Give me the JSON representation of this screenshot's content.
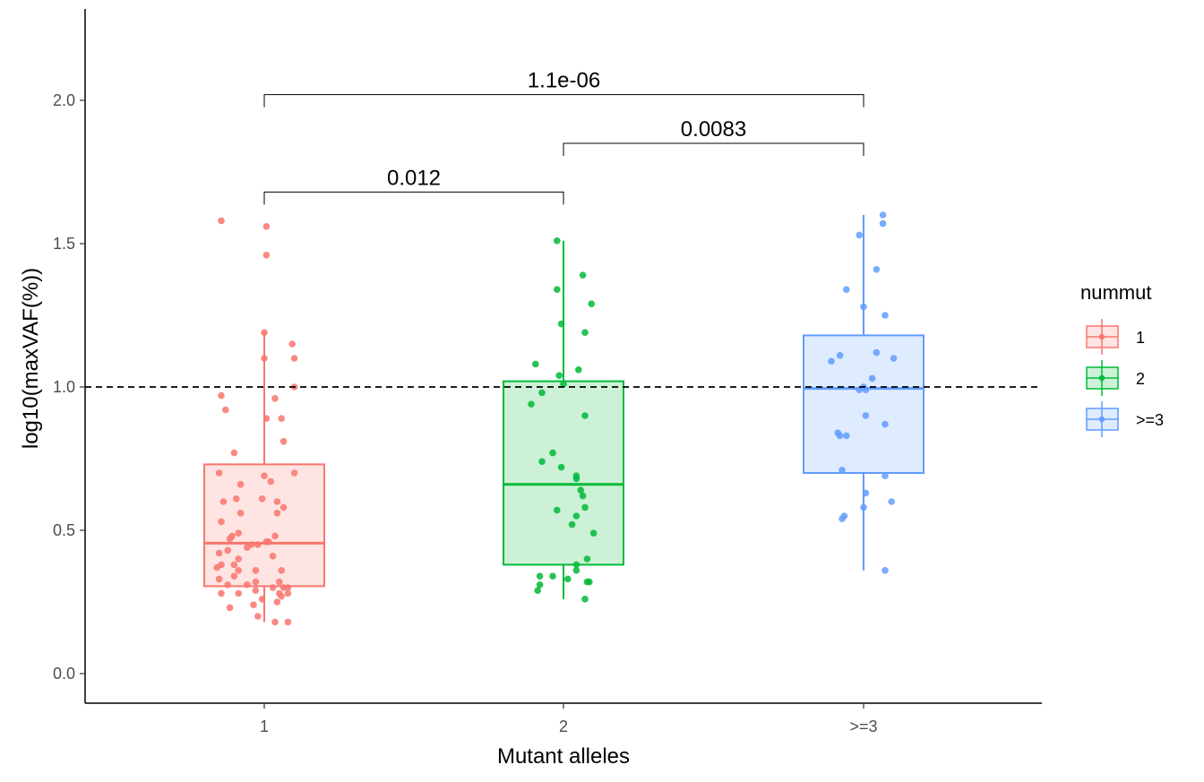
{
  "chart_data": {
    "type": "box",
    "xlabel": "Mutant alleles",
    "ylabel": "log10(maxVAF(%))",
    "categories": [
      "1",
      "2",
      ">=3"
    ],
    "ylim": [
      -0.1,
      2.3
    ],
    "yticks": [
      0.0,
      0.5,
      1.0,
      1.5,
      2.0
    ],
    "ytick_labels": [
      "0.0",
      "0.5",
      "1.0",
      "1.5",
      "2.0"
    ],
    "reference_line": {
      "y": 1.0,
      "style": "dashed",
      "color": "#000000"
    },
    "grid": false,
    "legend": {
      "title": "nummut",
      "position": "right",
      "entries": [
        "1",
        "2",
        ">=3"
      ]
    },
    "colors": {
      "1": "#F8766D",
      "2": "#00BA38",
      ">=3": "#619CFF"
    },
    "boxes": [
      {
        "category": "1",
        "lower_whisker": 0.18,
        "q1": 0.305,
        "median": 0.455,
        "q3": 0.73,
        "upper_whisker": 1.19
      },
      {
        "category": "2",
        "lower_whisker": 0.26,
        "q1": 0.38,
        "median": 0.66,
        "q3": 1.02,
        "upper_whisker": 1.51
      },
      {
        "category": ">=3",
        "lower_whisker": 0.36,
        "q1": 0.7,
        "median": 0.995,
        "q3": 1.18,
        "upper_whisker": 1.6
      }
    ],
    "points": {
      "1": [
        [
          -0.2,
          1.58
        ],
        [
          0.01,
          1.56
        ],
        [
          0.01,
          1.46
        ],
        [
          0.0,
          1.19
        ],
        [
          0.13,
          1.15
        ],
        [
          0.14,
          1.1
        ],
        [
          0.0,
          1.1
        ],
        [
          0.14,
          1.0
        ],
        [
          -0.2,
          0.97
        ],
        [
          0.05,
          0.96
        ],
        [
          -0.18,
          0.92
        ],
        [
          0.01,
          0.89
        ],
        [
          0.08,
          0.89
        ],
        [
          0.09,
          0.81
        ],
        [
          -0.14,
          0.77
        ],
        [
          -0.21,
          0.7
        ],
        [
          0.14,
          0.7
        ],
        [
          0.0,
          0.69
        ],
        [
          0.03,
          0.67
        ],
        [
          -0.11,
          0.66
        ],
        [
          -0.13,
          0.61
        ],
        [
          -0.01,
          0.61
        ],
        [
          -0.19,
          0.6
        ],
        [
          0.06,
          0.6
        ],
        [
          0.09,
          0.58
        ],
        [
          -0.11,
          0.56
        ],
        [
          0.06,
          0.56
        ],
        [
          -0.2,
          0.53
        ],
        [
          -0.12,
          0.49
        ],
        [
          -0.15,
          0.48
        ],
        [
          0.05,
          0.48
        ],
        [
          -0.16,
          0.47
        ],
        [
          0.01,
          0.46
        ],
        [
          0.02,
          0.46
        ],
        [
          -0.03,
          0.45
        ],
        [
          -0.06,
          0.45
        ],
        [
          -0.08,
          0.44
        ],
        [
          -0.17,
          0.43
        ],
        [
          -0.21,
          0.42
        ],
        [
          0.04,
          0.41
        ],
        [
          -0.12,
          0.4
        ],
        [
          -0.14,
          0.38
        ],
        [
          -0.2,
          0.38
        ],
        [
          -0.22,
          0.37
        ],
        [
          -0.12,
          0.36
        ],
        [
          -0.04,
          0.36
        ],
        [
          0.08,
          0.36
        ],
        [
          -0.14,
          0.34
        ],
        [
          -0.21,
          0.33
        ],
        [
          -0.04,
          0.32
        ],
        [
          0.07,
          0.32
        ],
        [
          -0.17,
          0.31
        ],
        [
          -0.08,
          0.31
        ],
        [
          0.04,
          0.3
        ],
        [
          0.09,
          0.3
        ],
        [
          0.11,
          0.3
        ],
        [
          -0.04,
          0.29
        ],
        [
          0.07,
          0.28
        ],
        [
          -0.2,
          0.28
        ],
        [
          0.11,
          0.28
        ],
        [
          -0.12,
          0.28
        ],
        [
          0.08,
          0.27
        ],
        [
          -0.01,
          0.26
        ],
        [
          0.06,
          0.25
        ],
        [
          -0.05,
          0.24
        ],
        [
          -0.16,
          0.23
        ],
        [
          -0.03,
          0.2
        ],
        [
          0.05,
          0.18
        ],
        [
          0.11,
          0.18
        ]
      ],
      "2": [
        [
          -0.03,
          1.51
        ],
        [
          0.09,
          1.39
        ],
        [
          -0.03,
          1.34
        ],
        [
          0.13,
          1.29
        ],
        [
          -0.01,
          1.22
        ],
        [
          0.1,
          1.19
        ],
        [
          -0.13,
          1.08
        ],
        [
          0.07,
          1.06
        ],
        [
          -0.02,
          1.04
        ],
        [
          -0.1,
          0.98
        ],
        [
          0.0,
          1.01
        ],
        [
          -0.15,
          0.94
        ],
        [
          0.1,
          0.9
        ],
        [
          -0.05,
          0.77
        ],
        [
          -0.1,
          0.74
        ],
        [
          -0.01,
          0.72
        ],
        [
          0.06,
          0.69
        ],
        [
          0.06,
          0.68
        ],
        [
          0.08,
          0.64
        ],
        [
          0.09,
          0.62
        ],
        [
          0.1,
          0.58
        ],
        [
          -0.03,
          0.57
        ],
        [
          0.06,
          0.55
        ],
        [
          0.04,
          0.52
        ],
        [
          0.14,
          0.49
        ],
        [
          0.11,
          0.4
        ],
        [
          0.06,
          0.38
        ],
        [
          0.06,
          0.36
        ],
        [
          -0.05,
          0.34
        ],
        [
          -0.11,
          0.34
        ],
        [
          0.02,
          0.33
        ],
        [
          0.11,
          0.32
        ],
        [
          0.12,
          0.32
        ],
        [
          -0.11,
          0.31
        ],
        [
          -0.12,
          0.29
        ],
        [
          0.1,
          0.26
        ]
      ],
      ">=3": [
        [
          0.09,
          1.6
        ],
        [
          0.09,
          1.57
        ],
        [
          -0.02,
          1.53
        ],
        [
          0.06,
          1.41
        ],
        [
          -0.08,
          1.34
        ],
        [
          0.1,
          1.25
        ],
        [
          0.0,
          1.28
        ],
        [
          -0.11,
          1.11
        ],
        [
          0.06,
          1.12
        ],
        [
          0.14,
          1.1
        ],
        [
          -0.15,
          1.09
        ],
        [
          0.04,
          1.03
        ],
        [
          0.0,
          1.0
        ],
        [
          -0.02,
          0.99
        ],
        [
          0.01,
          0.99
        ],
        [
          0.01,
          0.9
        ],
        [
          0.1,
          0.87
        ],
        [
          -0.12,
          0.84
        ],
        [
          -0.08,
          0.83
        ],
        [
          -0.11,
          0.83
        ],
        [
          -0.1,
          0.71
        ],
        [
          0.1,
          0.69
        ],
        [
          0.13,
          0.6
        ],
        [
          0.01,
          0.63
        ],
        [
          0.0,
          0.58
        ],
        [
          -0.09,
          0.55
        ],
        [
          -0.1,
          0.54
        ],
        [
          0.1,
          0.36
        ]
      ]
    },
    "comparisons": [
      {
        "from": "1",
        "to": "2",
        "label": "0.012",
        "y": 1.68
      },
      {
        "from": "2",
        "to": ">=3",
        "label": "0.0083",
        "y": 1.85
      },
      {
        "from": "1",
        "to": ">=3",
        "label": "1.1e-06",
        "y": 2.02
      }
    ]
  }
}
